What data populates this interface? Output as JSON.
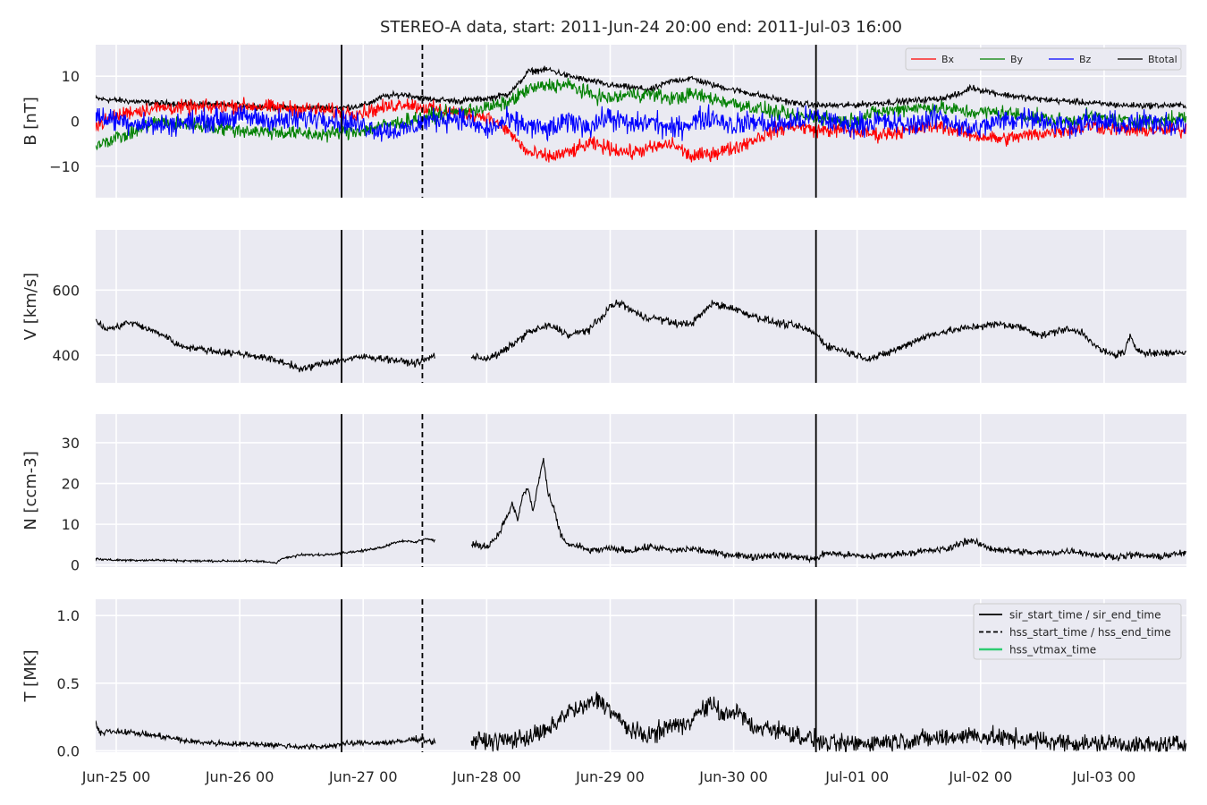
{
  "title": "STEREO-A data, start: 2011-Jun-24 20:00  end: 2011-Jul-03 16:00",
  "colors": {
    "panel_bg": "#EAEAF2",
    "grid": "#FFFFFF",
    "Bx": "#FF0000",
    "By": "#008000",
    "Bz": "#0000FF",
    "Btotal": "#000000",
    "event_line": "#000000",
    "hss_vtmax": "#2ECC71"
  },
  "chart_data": {
    "type": "line",
    "x_unit": "hours since 2011-06-24 20:00",
    "xlim": [
      0,
      212
    ],
    "x_tick_labels": [
      "Jun-25 00",
      "Jun-26 00",
      "Jun-27 00",
      "Jun-28 00",
      "Jun-29 00",
      "Jun-30 00",
      "Jul-01 00",
      "Jul-02 00",
      "Jul-03 00"
    ],
    "x_tick_values": [
      4,
      28,
      52,
      76,
      100,
      124,
      148,
      172,
      196
    ],
    "events": [
      {
        "name": "sir_start_time",
        "x": 47.8,
        "style": "solid"
      },
      {
        "name": "hss_start_time",
        "x": 63.5,
        "style": "dashed"
      },
      {
        "name": "sir_end_time",
        "x": 140.0,
        "style": "solid"
      }
    ],
    "panels": [
      {
        "ylabel": "B [nT]",
        "ylim": [
          -17,
          17
        ],
        "yticks": [
          -10,
          0,
          10
        ],
        "ytick_labels": [
          "−10",
          "0",
          "10"
        ],
        "legend": {
          "position": "top-right",
          "columns": 4,
          "entries": [
            "Bx",
            "By",
            "Bz",
            "Btotal"
          ]
        },
        "series": [
          {
            "name": "Btotal",
            "color_key": "Btotal",
            "noise": 0.6,
            "x": [
              0,
              6,
              12,
              20,
              28,
              36,
              44,
              48,
              52,
              56,
              60,
              64,
              70,
              76,
              80,
              82,
              84,
              88,
              92,
              96,
              100,
              104,
              108,
              112,
              116,
              120,
              124,
              128,
              132,
              136,
              140,
              146,
              152,
              158,
              164,
              168,
              170,
              176,
              182,
              188,
              194,
              200,
              206,
              212
            ],
            "y": [
              5,
              4.5,
              4,
              3.8,
              3.5,
              3,
              3,
              3,
              3.5,
              5.5,
              6,
              5,
              4.5,
              5,
              6,
              8,
              11,
              11.5,
              10,
              9,
              8,
              7.5,
              7,
              9,
              9.5,
              8,
              7,
              6,
              5,
              4,
              3.5,
              3.5,
              4,
              4.5,
              5,
              6,
              7.5,
              6,
              5,
              4.5,
              4,
              3.5,
              3.5,
              3.5
            ]
          },
          {
            "name": "Bx",
            "color_key": "Bx",
            "noise": 1.4,
            "x": [
              0,
              6,
              12,
              20,
              28,
              36,
              44,
              48,
              52,
              56,
              60,
              64,
              70,
              76,
              80,
              84,
              88,
              92,
              96,
              100,
              104,
              108,
              112,
              116,
              120,
              124,
              128,
              132,
              136,
              140,
              146,
              152,
              158,
              164,
              170,
              176,
              182,
              188,
              194,
              200,
              206,
              212
            ],
            "y": [
              -1,
              2,
              3,
              3,
              3.5,
              3,
              2.5,
              2,
              2,
              3,
              4,
              3,
              2,
              1,
              -2,
              -7,
              -8,
              -7,
              -5,
              -6,
              -7,
              -6,
              -5,
              -8,
              -7,
              -6,
              -4,
              -2,
              -1,
              -2,
              -2,
              -3,
              -2,
              -1,
              -3,
              -4,
              -3,
              -2,
              -1,
              -2,
              -2,
              -2
            ]
          },
          {
            "name": "By",
            "color_key": "By",
            "noise": 1.4,
            "x": [
              0,
              6,
              12,
              20,
              28,
              36,
              44,
              48,
              52,
              56,
              60,
              64,
              70,
              76,
              80,
              84,
              88,
              92,
              96,
              100,
              104,
              108,
              112,
              116,
              120,
              124,
              128,
              132,
              136,
              140,
              146,
              152,
              158,
              164,
              170,
              176,
              182,
              188,
              194,
              200,
              206,
              212
            ],
            "y": [
              -5,
              -3,
              0,
              -1,
              -2,
              -2.5,
              -3,
              -2.5,
              -2,
              -1,
              0,
              1,
              2,
              3,
              4,
              7,
              8,
              8,
              6,
              5,
              6,
              6,
              5,
              6,
              5,
              4,
              3,
              2,
              1,
              1,
              0,
              2,
              3,
              3,
              2,
              2,
              1,
              0,
              1,
              0,
              0,
              1
            ]
          },
          {
            "name": "Bz",
            "color_key": "Bz",
            "noise": 2.2,
            "x": [
              0,
              6,
              12,
              20,
              28,
              36,
              44,
              48,
              52,
              56,
              60,
              64,
              70,
              76,
              80,
              84,
              88,
              92,
              96,
              100,
              104,
              108,
              112,
              116,
              120,
              124,
              128,
              132,
              136,
              140,
              146,
              152,
              158,
              164,
              170,
              176,
              182,
              188,
              194,
              200,
              206,
              212
            ],
            "y": [
              1,
              0,
              -1,
              0,
              1,
              0,
              1,
              0,
              -1,
              -2,
              -2,
              0,
              1,
              -2,
              0,
              -1,
              -2,
              0,
              -1,
              1,
              -1,
              0,
              -2,
              0,
              1,
              -1,
              0,
              -1,
              0,
              1,
              -1,
              0,
              -1,
              1,
              -2,
              0,
              1,
              -1,
              0,
              -1,
              0,
              -1
            ]
          }
        ]
      },
      {
        "ylabel": "V [km/s]",
        "ylim": [
          315,
          785
        ],
        "yticks": [
          400,
          600
        ],
        "ytick_labels": [
          "400",
          "600"
        ],
        "series": [
          {
            "name": "V",
            "color_key": "Btotal",
            "noise": 9,
            "x": [
              0,
              1,
              2,
              4,
              6,
              8,
              10,
              12,
              14,
              16,
              20,
              24,
              28,
              32,
              36,
              38,
              40,
              42,
              44,
              46,
              48,
              52,
              56,
              58,
              60,
              62,
              64,
              66
            ],
            "y": [
              510,
              490,
              480,
              485,
              500,
              495,
              480,
              470,
              455,
              430,
              420,
              410,
              405,
              395,
              380,
              370,
              355,
              365,
              375,
              380,
              385,
              395,
              390,
              385,
              380,
              375,
              385,
              400
            ]
          },
          {
            "name": "V",
            "color_key": "Btotal",
            "noise": 10,
            "x": [
              73,
              76,
              78,
              80,
              84,
              88,
              90,
              92,
              94,
              96,
              98,
              100,
              102,
              104,
              106,
              108,
              110,
              112,
              114,
              116,
              118,
              120,
              122,
              124,
              126,
              128,
              130,
              132,
              134,
              136,
              138,
              140,
              142,
              144,
              146,
              148,
              150,
              152,
              156,
              160,
              164,
              168,
              172,
              176,
              180,
              184,
              186,
              188,
              190,
              192,
              194,
              196,
              198,
              200,
              201,
              202,
              204,
              206,
              212
            ],
            "y": [
              395,
              390,
              400,
              420,
              470,
              490,
              480,
              460,
              470,
              480,
              510,
              550,
              560,
              540,
              520,
              515,
              510,
              500,
              495,
              500,
              530,
              560,
              550,
              545,
              530,
              520,
              510,
              500,
              495,
              490,
              480,
              465,
              430,
              420,
              410,
              400,
              390,
              395,
              420,
              450,
              470,
              480,
              490,
              495,
              485,
              460,
              470,
              480,
              475,
              470,
              430,
              410,
              400,
              410,
              460,
              420,
              410,
              405,
              410
            ]
          }
        ]
      },
      {
        "ylabel": "N [ccm-3]",
        "ylim": [
          -0.5,
          37
        ],
        "yticks": [
          0,
          10,
          20,
          30
        ],
        "ytick_labels": [
          "0",
          "10",
          "20",
          "30"
        ],
        "series": [
          {
            "name": "N",
            "color_key": "Btotal",
            "noise": 0.25,
            "x": [
              0,
              4,
              12,
              20,
              28,
              32,
              34,
              35,
              36,
              38,
              40,
              44,
              48,
              52,
              56,
              58,
              60,
              62,
              64,
              66
            ],
            "y": [
              1.5,
              1.2,
              1.2,
              1.0,
              1.0,
              0.9,
              0.7,
              0.5,
              1.5,
              2.0,
              2.5,
              2.5,
              3,
              3.5,
              4.5,
              5.5,
              6,
              5.5,
              6.5,
              6
            ]
          },
          {
            "name": "N",
            "color_key": "Btotal",
            "noise": 0.7,
            "x": [
              73,
              76,
              78,
              80,
              81,
              82,
              83,
              84,
              85,
              86,
              87,
              88,
              89,
              90,
              91,
              92,
              94,
              96,
              100,
              104,
              108,
              112,
              116,
              120,
              124,
              128,
              132,
              136,
              140,
              142,
              146,
              150,
              154,
              158,
              162,
              166,
              168,
              170,
              174,
              178,
              182,
              186,
              190,
              194,
              198,
              202,
              206,
              212
            ],
            "y": [
              5,
              4.5,
              7,
              12,
              15,
              11,
              17,
              19,
              13,
              20,
              26,
              17,
              14,
              9,
              6,
              5,
              4.5,
              3.5,
              4,
              3.5,
              4.5,
              3.5,
              4,
              3,
              2.5,
              2,
              2.5,
              2,
              1.5,
              3,
              2.5,
              2,
              2.5,
              3,
              3.5,
              4,
              5.5,
              6,
              4,
              3.5,
              3,
              3,
              3.5,
              2.5,
              2,
              2.5,
              2,
              3
            ]
          }
        ]
      },
      {
        "ylabel": "T [MK]",
        "ylim": [
          -0.01,
          1.12
        ],
        "yticks": [
          0.0,
          0.5,
          1.0
        ],
        "ytick_labels": [
          "0.0",
          "0.5",
          "1.0"
        ],
        "legend": {
          "position": "top-right",
          "columns": 1,
          "entries": [
            "sir_start_time / sir_end_time",
            "hss_start_time / hss_end_time",
            "hss_vtmax_time"
          ]
        },
        "series": [
          {
            "name": "T",
            "color_key": "Btotal",
            "noise": 0.018,
            "x": [
              0,
              1,
              2,
              6,
              10,
              14,
              18,
              22,
              28,
              32,
              36,
              40,
              44,
              48,
              52,
              56,
              60,
              62,
              64,
              66
            ],
            "y": [
              0.2,
              0.12,
              0.15,
              0.14,
              0.12,
              0.1,
              0.07,
              0.06,
              0.05,
              0.05,
              0.04,
              0.03,
              0.03,
              0.05,
              0.06,
              0.06,
              0.07,
              0.09,
              0.08,
              0.06
            ]
          },
          {
            "name": "T",
            "color_key": "Btotal",
            "noise": 0.06,
            "x": [
              73,
              76,
              80,
              84,
              88,
              92,
              94,
              96,
              98,
              100,
              102,
              104,
              106,
              108,
              110,
              112,
              114,
              116,
              118,
              120,
              122,
              124,
              126,
              128,
              130,
              132,
              134,
              136,
              138,
              140,
              142,
              146,
              150,
              154,
              158,
              162,
              166,
              170,
              174,
              178,
              182,
              186,
              190,
              194,
              198,
              202,
              206,
              212
            ],
            "y": [
              0.08,
              0.07,
              0.08,
              0.1,
              0.15,
              0.3,
              0.3,
              0.35,
              0.38,
              0.3,
              0.22,
              0.15,
              0.12,
              0.12,
              0.15,
              0.2,
              0.18,
              0.25,
              0.3,
              0.35,
              0.25,
              0.3,
              0.25,
              0.15,
              0.18,
              0.16,
              0.14,
              0.12,
              0.1,
              0.08,
              0.05,
              0.05,
              0.06,
              0.07,
              0.08,
              0.09,
              0.1,
              0.12,
              0.1,
              0.09,
              0.08,
              0.07,
              0.06,
              0.05,
              0.06,
              0.04,
              0.04,
              0.05
            ]
          }
        ]
      }
    ]
  }
}
